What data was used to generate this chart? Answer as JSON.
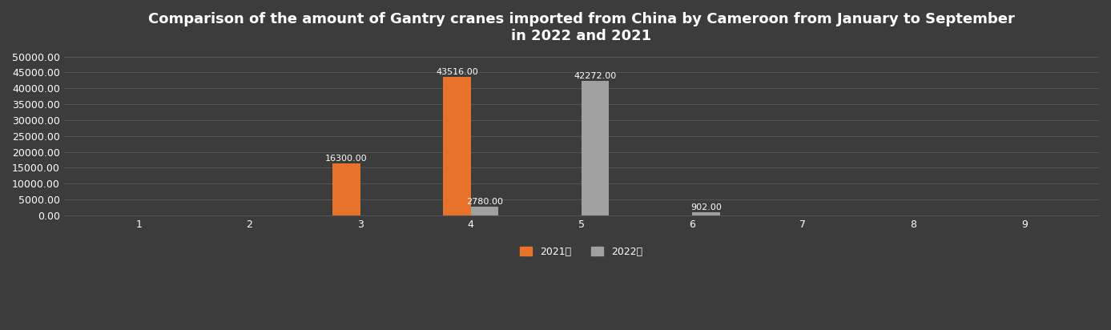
{
  "title": "Comparison of the amount of Gantry cranes imported from China by Cameroon from January to September\nin 2022 and 2021",
  "categories": [
    1,
    2,
    3,
    4,
    5,
    6,
    7,
    8,
    9
  ],
  "series_2021": [
    0,
    0,
    16300.0,
    43516.0,
    0,
    0,
    0,
    0,
    0
  ],
  "series_2022": [
    0,
    0,
    0,
    2780.0,
    42272.0,
    902.0,
    0,
    0,
    0
  ],
  "color_2021": "#E8722A",
  "color_2022": "#A0A0A0",
  "background_color": "#3C3C3C",
  "text_color": "#FFFFFF",
  "grid_color": "#555555",
  "ylim": [
    0,
    50000
  ],
  "yticks": [
    0,
    5000,
    10000,
    15000,
    20000,
    25000,
    30000,
    35000,
    40000,
    45000,
    50000
  ],
  "legend_2021": "2021年",
  "legend_2022": "2022年",
  "bar_width": 0.25,
  "title_fontsize": 13,
  "tick_fontsize": 9,
  "label_fontsize": 8,
  "legend_fontsize": 9
}
